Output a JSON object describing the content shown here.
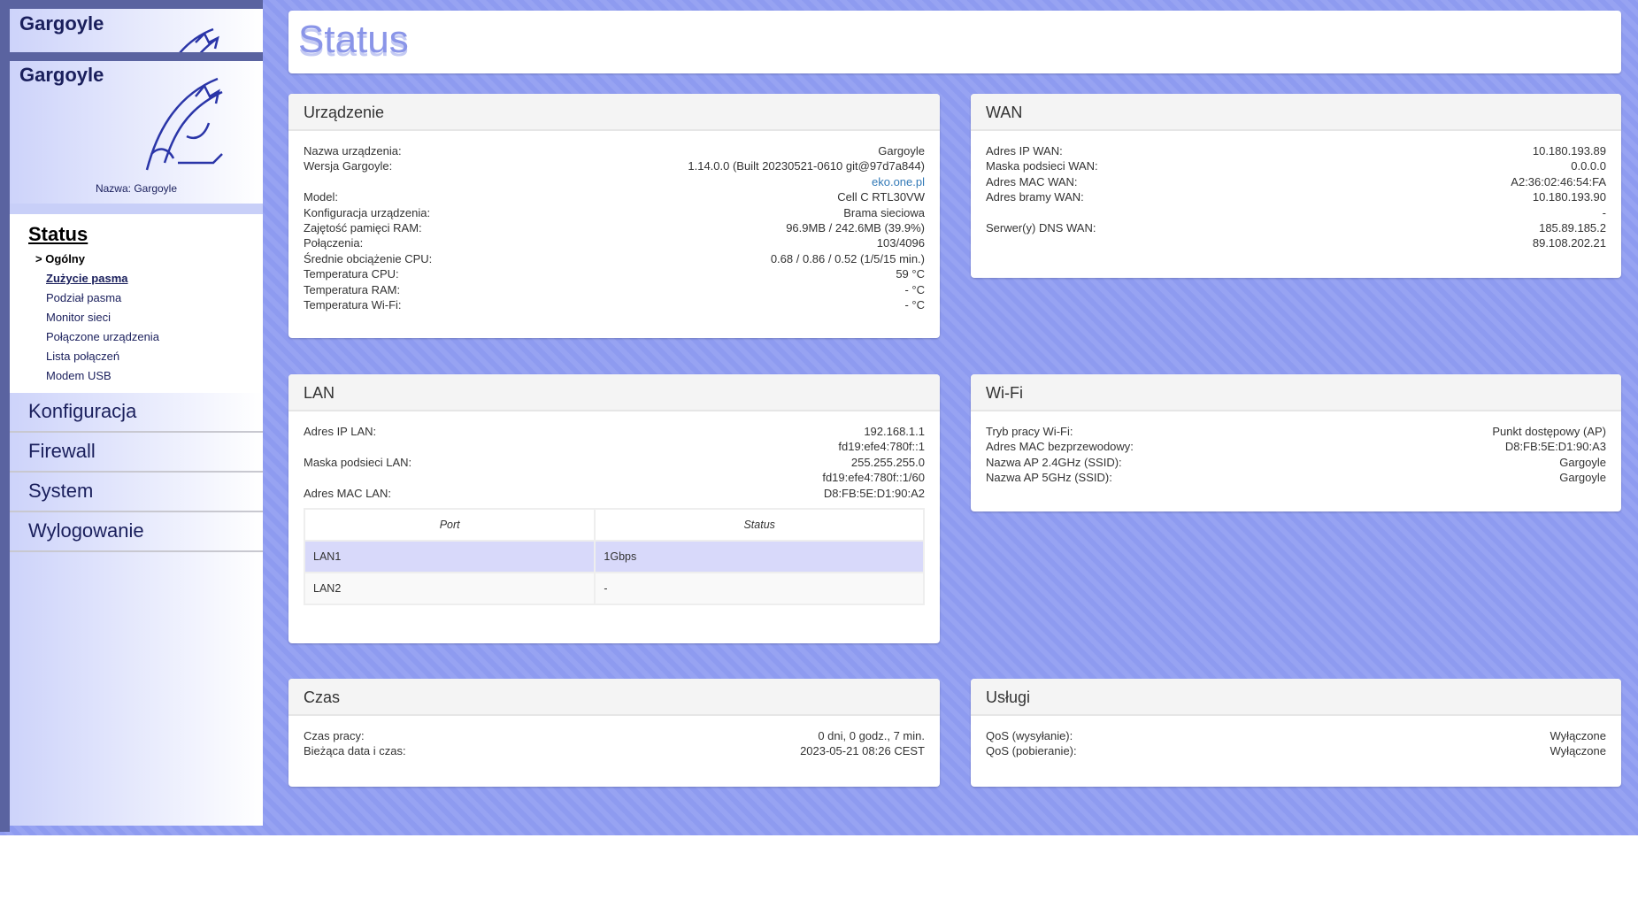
{
  "brand": "Gargoyle",
  "device_name_label": "Nazwa: Gargoyle",
  "colors": {
    "background": "#8e9bf0",
    "sidebar_dark": "#5a63a0",
    "title": "#8a95e8",
    "row_highlight": "#d8d9fa"
  },
  "sidebar": {
    "section": "Status",
    "current": "> Ogólny",
    "subitems": [
      "Zużycie pasma",
      "Podział pasma",
      "Monitor sieci",
      "Połączone urządzenia",
      "Lista połączeń",
      "Modem USB"
    ],
    "items": [
      "Konfiguracja",
      "Firewall",
      "System",
      "Wylogowanie"
    ]
  },
  "page_title": "Status",
  "device": {
    "title": "Urządzenie",
    "rows": [
      {
        "label": "Nazwa urządzenia:",
        "values": [
          "Gargoyle"
        ]
      },
      {
        "label": "Wersja Gargoyle:",
        "values": [
          "1.14.0.0 (Built 20230521-0610 git@97d7a844)"
        ],
        "link": "eko.one.pl"
      },
      {
        "label": "Model:",
        "values": [
          "Cell C RTL30VW"
        ]
      },
      {
        "label": "Konfiguracja urządzenia:",
        "values": [
          "Brama sieciowa"
        ]
      },
      {
        "label": "Zajętość pamięci RAM:",
        "values": [
          "96.9MB / 242.6MB (39.9%)"
        ]
      },
      {
        "label": "Połączenia:",
        "values": [
          "103/4096"
        ]
      },
      {
        "label": "Średnie obciążenie CPU:",
        "values": [
          "0.68 / 0.86 / 0.52 (1/5/15 min.)"
        ]
      },
      {
        "label": "Temperatura CPU:",
        "values": [
          "59 °C"
        ]
      },
      {
        "label": "Temperatura RAM:",
        "values": [
          "- °C"
        ]
      },
      {
        "label": "Temperatura Wi-Fi:",
        "values": [
          "- °C"
        ]
      }
    ]
  },
  "wan": {
    "title": "WAN",
    "rows": [
      {
        "label": "Adres IP WAN:",
        "values": [
          "10.180.193.89"
        ]
      },
      {
        "label": "Maska podsieci WAN:",
        "values": [
          "0.0.0.0"
        ]
      },
      {
        "label": "Adres MAC WAN:",
        "values": [
          "A2:36:02:46:54:FA"
        ]
      },
      {
        "label": "Adres bramy WAN:",
        "values": [
          "10.180.193.90",
          "-"
        ]
      },
      {
        "label": "Serwer(y) DNS WAN:",
        "values": [
          "185.89.185.2",
          "89.108.202.21"
        ]
      }
    ]
  },
  "lan": {
    "title": "LAN",
    "rows": [
      {
        "label": "Adres IP LAN:",
        "values": [
          "192.168.1.1",
          "fd19:efe4:780f::1"
        ]
      },
      {
        "label": "Maska podsieci LAN:",
        "values": [
          "255.255.255.0",
          "fd19:efe4:780f::1/60"
        ]
      },
      {
        "label": "Adres MAC LAN:",
        "values": [
          "D8:FB:5E:D1:90:A2"
        ]
      }
    ],
    "table": {
      "headers": [
        "Port",
        "Status"
      ],
      "rows": [
        [
          "LAN1",
          "1Gbps"
        ],
        [
          "LAN2",
          "-"
        ]
      ]
    }
  },
  "wifi": {
    "title": "Wi-Fi",
    "rows": [
      {
        "label": "Tryb pracy Wi-Fi:",
        "values": [
          "Punkt dostępowy (AP)"
        ]
      },
      {
        "label": "Adres MAC bezprzewodowy:",
        "values": [
          "D8:FB:5E:D1:90:A3"
        ]
      },
      {
        "label": "Nazwa AP 2.4GHz (SSID):",
        "values": [
          "Gargoyle"
        ]
      },
      {
        "label": "Nazwa AP 5GHz (SSID):",
        "values": [
          "Gargoyle"
        ]
      }
    ]
  },
  "time": {
    "title": "Czas",
    "rows": [
      {
        "label": "Czas pracy:",
        "values": [
          "0 dni, 0 godz., 7 min."
        ]
      },
      {
        "label": "Bieżąca data i czas:",
        "values": [
          "2023-05-21 08:26 CEST"
        ]
      }
    ]
  },
  "services": {
    "title": "Usługi",
    "rows": [
      {
        "label": "QoS (wysyłanie):",
        "values": [
          "Wyłączone"
        ]
      },
      {
        "label": "QoS (pobieranie):",
        "values": [
          "Wyłączone"
        ]
      }
    ]
  }
}
